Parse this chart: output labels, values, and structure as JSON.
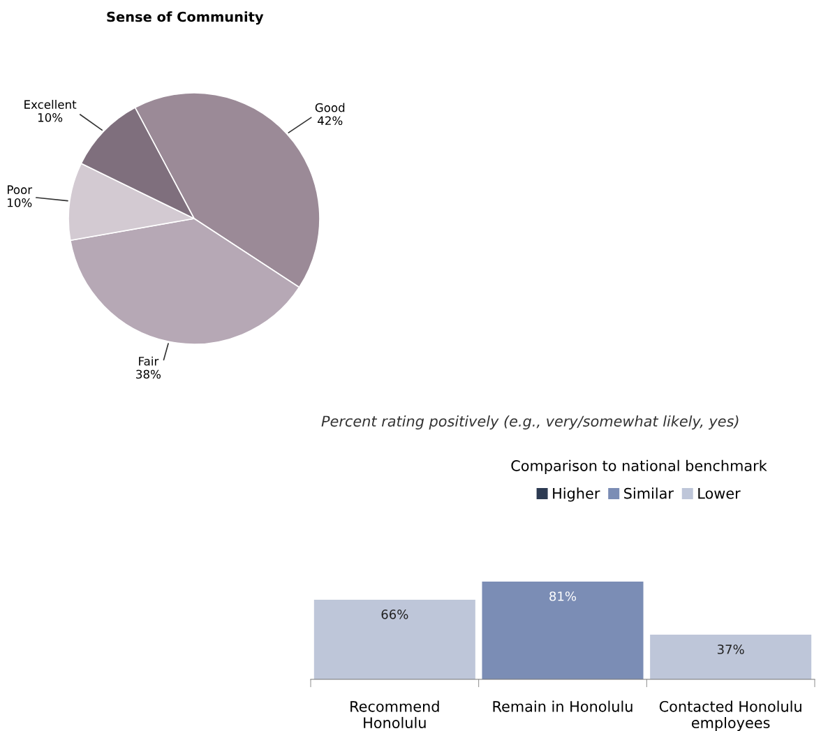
{
  "chart_data": [
    {
      "type": "pie",
      "title": "Sense of Community",
      "categories": [
        "Good",
        "Fair",
        "Poor",
        "Excellent"
      ],
      "values": [
        42,
        38,
        10,
        10
      ],
      "colors": [
        "#9b8a97",
        "#b6a8b5",
        "#d3cad2",
        "#7f6f7d"
      ],
      "value_labels": [
        "42%",
        "38%",
        "10%",
        "10%"
      ]
    },
    {
      "type": "bar",
      "categories": [
        "Recommend\nHonolulu",
        "Remain in Honolulu",
        "Contacted Honolulu\nemployees"
      ],
      "legend": "top",
      "legend_title": "Comparison to national benchmark",
      "annotations": [
        "Percent rating positively (e.g., very/somewhat likely, yes)"
      ],
      "series": [
        {
          "name": "Higher",
          "color": "#2c3a52",
          "values": [
            null,
            null,
            null
          ]
        },
        {
          "name": "Similar",
          "color": "#7b8db5",
          "values": [
            null,
            81,
            null
          ],
          "value_labels": [
            null,
            "81%",
            null
          ]
        },
        {
          "name": "Lower",
          "color": "#bec6d9",
          "values": [
            66,
            null,
            37
          ],
          "value_labels": [
            "66%",
            null,
            "37%"
          ]
        }
      ]
    }
  ]
}
